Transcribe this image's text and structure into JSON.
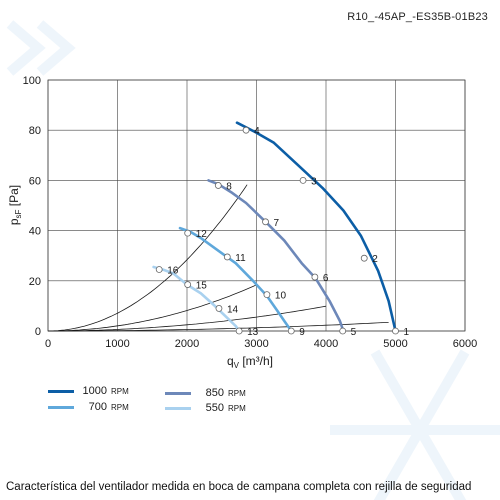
{
  "code_label": "R10_-45AP_-ES35B-01B23",
  "caption": "Característica del ventilador medida en boca de campana completa con rejilla de seguridad",
  "colors": {
    "rpm_1000": "#0c5ea6",
    "rpm_850": "#6d88b9",
    "rpm_700": "#5fa8db",
    "rpm_550": "#a9d1ef",
    "system_curve": "#1a1a1a",
    "grid": "#444444",
    "background_decor": "#eef5fb"
  },
  "legend": [
    {
      "value": "1000",
      "unit": "RPM",
      "color_key": "rpm_1000"
    },
    {
      "value": "700",
      "unit": "RPM",
      "color_key": "rpm_700"
    },
    {
      "value": "850",
      "unit": "RPM",
      "color_key": "rpm_850"
    },
    {
      "value": "550",
      "unit": "RPM",
      "color_key": "rpm_550"
    }
  ],
  "chart_data": {
    "type": "line",
    "xlabel_main": "q",
    "xlabel_sub": "V",
    "xlabel_unit": " [m³/h]",
    "ylabel_main": "p",
    "ylabel_sub": "sF",
    "ylabel_unit": " [Pa]",
    "xlim": [
      0,
      6000
    ],
    "ylim": [
      0,
      100
    ],
    "xticks": [
      0,
      1000,
      2000,
      3000,
      4000,
      5000,
      6000
    ],
    "yticks": [
      0,
      20,
      40,
      60,
      80,
      100
    ],
    "grid": true,
    "series": [
      {
        "name": "1000 RPM",
        "color_key": "rpm_1000",
        "width": 2.6,
        "x": [
          2720,
          3000,
          3250,
          3600,
          3950,
          4250,
          4500,
          4750,
          4900,
          5000
        ],
        "y": [
          83,
          79,
          75,
          66,
          57,
          48,
          38,
          24,
          12,
          0
        ]
      },
      {
        "name": "850 RPM",
        "color_key": "rpm_850",
        "width": 2.6,
        "x": [
          2310,
          2450,
          2650,
          2850,
          3150,
          3400,
          3650,
          3850,
          4050,
          4200,
          4250
        ],
        "y": [
          60,
          58.5,
          55,
          51,
          43,
          36,
          27,
          21,
          12,
          4,
          0
        ]
      },
      {
        "name": "700 RPM",
        "color_key": "rpm_700",
        "width": 2.6,
        "x": [
          1900,
          2050,
          2200,
          2450,
          2700,
          2950,
          3150,
          3300,
          3400,
          3500
        ],
        "y": [
          41,
          39.5,
          37,
          32,
          27,
          20,
          14,
          8,
          4,
          0
        ]
      },
      {
        "name": "550 RPM",
        "color_key": "rpm_550",
        "width": 2.6,
        "x": [
          1520,
          1650,
          1800,
          2000,
          2200,
          2400,
          2550,
          2700,
          2750
        ],
        "y": [
          25.5,
          24.5,
          23,
          18.5,
          15,
          10,
          6,
          2,
          0
        ]
      }
    ],
    "system_curves": [
      {
        "k": 1.433e-07,
        "x_end": 4900
      },
      {
        "k": 6.17e-07,
        "x_end": 4000
      },
      {
        "k": 2.04e-06,
        "x_end": 3010
      },
      {
        "k": 7.1e-06,
        "x_end": 2865
      }
    ],
    "operating_points": [
      {
        "label": "1",
        "x": 5000,
        "y": 0
      },
      {
        "label": "2",
        "x": 4550,
        "y": 29
      },
      {
        "label": "3",
        "x": 3670,
        "y": 60
      },
      {
        "label": "4",
        "x": 2850,
        "y": 80
      },
      {
        "label": "5",
        "x": 4240,
        "y": 0
      },
      {
        "label": "6",
        "x": 3840,
        "y": 21.5
      },
      {
        "label": "7",
        "x": 3130,
        "y": 43.5
      },
      {
        "label": "8",
        "x": 2450,
        "y": 58
      },
      {
        "label": "9",
        "x": 3500,
        "y": 0
      },
      {
        "label": "10",
        "x": 3150,
        "y": 14.5
      },
      {
        "label": "11",
        "x": 2580,
        "y": 29.5
      },
      {
        "label": "12",
        "x": 2010,
        "y": 39
      },
      {
        "label": "13",
        "x": 2750,
        "y": 0
      },
      {
        "label": "14",
        "x": 2460,
        "y": 9
      },
      {
        "label": "15",
        "x": 2010,
        "y": 18.5
      },
      {
        "label": "16",
        "x": 1600,
        "y": 24.5
      }
    ]
  }
}
